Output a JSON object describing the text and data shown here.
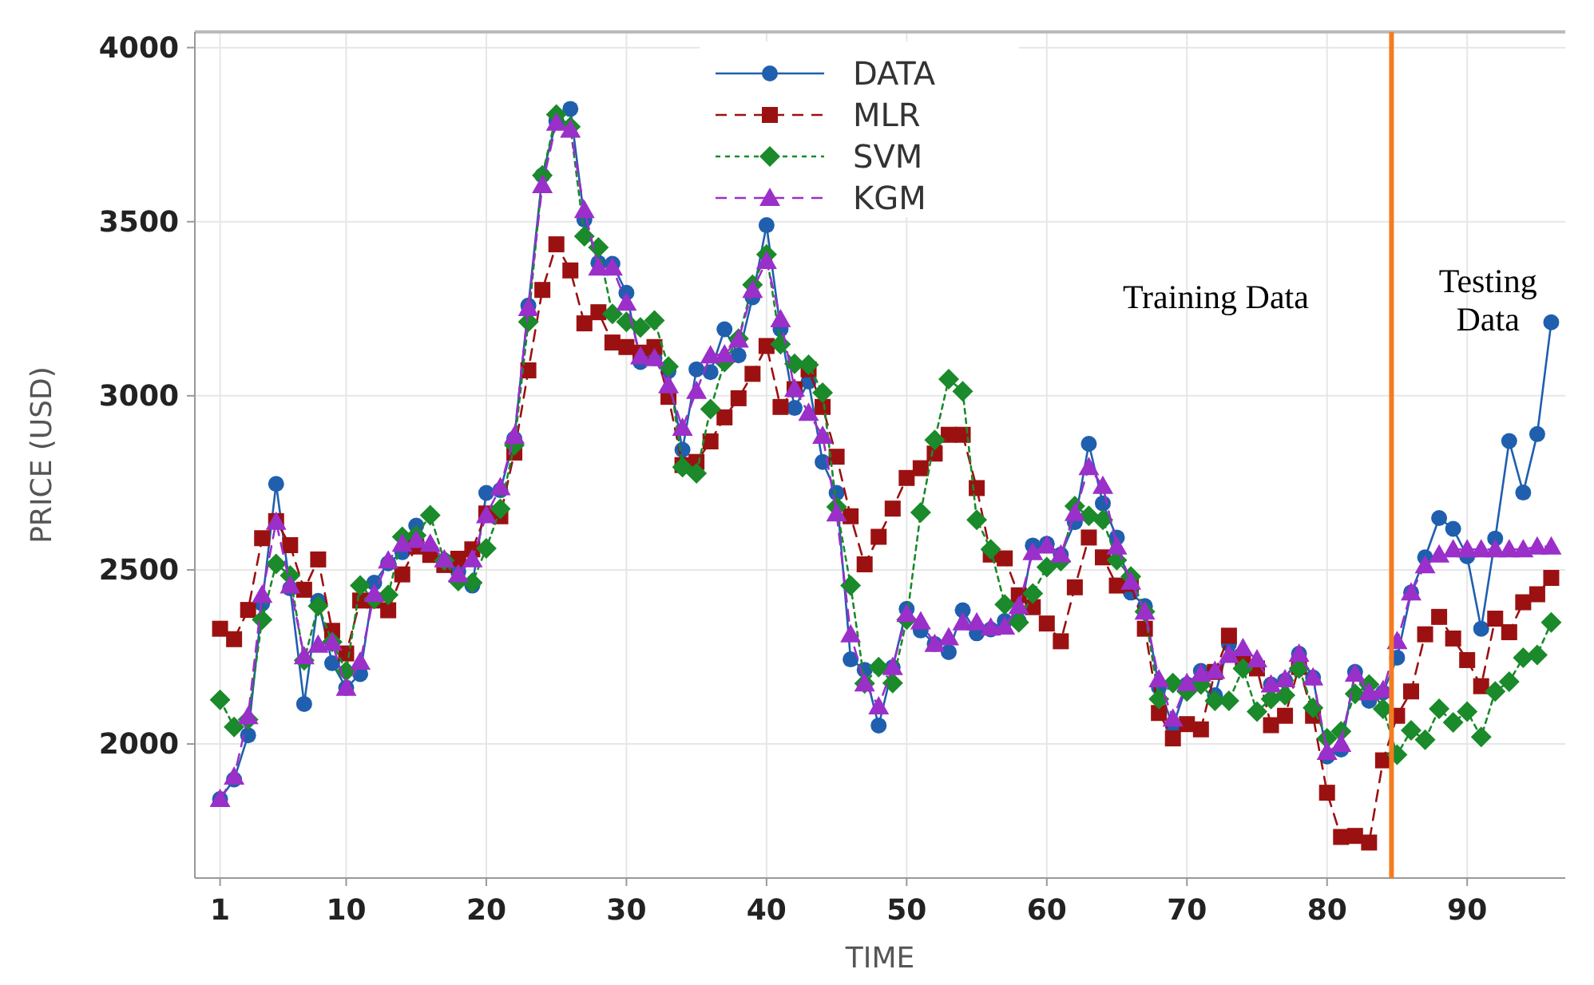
{
  "chart_data": {
    "type": "line",
    "xlabel": "TIME",
    "ylabel": "PRICE (USD)",
    "x": [
      1,
      2,
      3,
      4,
      5,
      6,
      7,
      8,
      9,
      10,
      11,
      12,
      13,
      14,
      15,
      16,
      17,
      18,
      19,
      20,
      21,
      22,
      23,
      24,
      25,
      26,
      27,
      28,
      29,
      30,
      31,
      32,
      33,
      34,
      35,
      36,
      37,
      38,
      39,
      40,
      41,
      42,
      43,
      44,
      45,
      46,
      47,
      48,
      49,
      50,
      51,
      52,
      53,
      54,
      55,
      56,
      57,
      58,
      59,
      60,
      61,
      62,
      63,
      64,
      65,
      66,
      67,
      68,
      69,
      70,
      71,
      72,
      73,
      74,
      75,
      76,
      77,
      78,
      79,
      80,
      81,
      82,
      83,
      84,
      85,
      86,
      87,
      88,
      89,
      90,
      91,
      92,
      93,
      94,
      95,
      96
    ],
    "xlim": [
      -0.8,
      97
    ],
    "xticks": [
      1,
      10,
      20,
      30,
      40,
      50,
      60,
      70,
      80,
      90
    ],
    "ylim": [
      1615,
      4045
    ],
    "yticks": [
      2000,
      2500,
      3000,
      3500,
      4000
    ],
    "grid": true,
    "legend": "top",
    "series": [
      {
        "name": "DATA",
        "color": "#1f5fae",
        "marker": "circle",
        "line_style": "solid",
        "values": [
          1842,
          1898,
          2025,
          2403,
          2747,
          2447,
          2115,
          2411,
          2232,
          2161,
          2201,
          2463,
          2519,
          2551,
          2627,
          null,
          2527,
          2495,
          2455,
          2721,
          2729,
          2877,
          3259,
          3633,
          3789,
          3824,
          3506,
          3382,
          3379,
          3296,
          3097,
          3108,
          3071,
          2845,
          3076,
          3068,
          3191,
          3116,
          3283,
          3490,
          3191,
          2965,
          3041,
          2810,
          2721,
          2243,
          2213,
          2053,
          2220,
          2388,
          2326,
          2287,
          2264,
          2384,
          2318,
          2329,
          2353,
          2353,
          2570,
          2575,
          2544,
          2637,
          2862,
          2691,
          2593,
          2435,
          2396,
          2163,
          2051,
          2171,
          2210,
          2140,
          2287,
          2233,
          null,
          2171,
          2182,
          2259,
          2191,
          1964,
          1984,
          2207,
          2124,
          2148,
          2248,
          2435,
          2536,
          2649,
          2618,
          2539,
          2331,
          2590,
          2870,
          2722,
          2890,
          3211
        ]
      },
      {
        "name": "MLR",
        "color": "#9b1111",
        "marker": "square",
        "line_style": "dashed",
        "values": [
          2331,
          2301,
          2385,
          2591,
          2640,
          2571,
          2443,
          2530,
          2325,
          2260,
          2412,
          2412,
          2384,
          2487,
          2567,
          2543,
          2514,
          2532,
          2559,
          2662,
          2654,
          2837,
          3073,
          3304,
          3435,
          3360,
          3208,
          3240,
          3153,
          3140,
          3124,
          3140,
          2997,
          2801,
          2810,
          2869,
          2938,
          2993,
          3063,
          3143,
          2968,
          3019,
          3076,
          2968,
          2825,
          2654,
          2516,
          2595,
          2676,
          2764,
          2792,
          2834,
          2888,
          2888,
          2735,
          2544,
          2533,
          2427,
          2393,
          2346,
          2295,
          2450,
          2593,
          2536,
          2455,
          2460,
          2331,
          2089,
          2016,
          2057,
          2042,
          2207,
          2311,
          2233,
          2217,
          2054,
          2081,
          2221,
          2081,
          1860,
          1733,
          1736,
          1717,
          1953,
          2081,
          2151,
          2315,
          2365,
          2303,
          2241,
          2166,
          2360,
          2321,
          2407,
          2430,
          2477
        ]
      },
      {
        "name": "SVM",
        "color": "#1a8a2a",
        "marker": "diamond",
        "line_style": "dotted",
        "values": [
          2127,
          2049,
          2070,
          2357,
          2517,
          2484,
          2240,
          2396,
          2293,
          2209,
          2455,
          2416,
          2428,
          2595,
          2599,
          2657,
          2527,
          2468,
          2463,
          2562,
          2675,
          2858,
          3212,
          3633,
          3808,
          3773,
          3458,
          3426,
          3235,
          3212,
          3196,
          3216,
          3084,
          2795,
          2777,
          2962,
          3097,
          3164,
          3319,
          3406,
          3148,
          3092,
          3089,
          3009,
          2681,
          2455,
          2174,
          2221,
          2175,
          2357,
          2665,
          2873,
          3048,
          3013,
          2644,
          2559,
          2401,
          2349,
          2432,
          2508,
          2525,
          2683,
          2655,
          2644,
          2528,
          2481,
          2380,
          2129,
          2175,
          2151,
          2171,
          2124,
          2124,
          2217,
          2093,
          2129,
          2140,
          2217,
          2104,
          2016,
          2036,
          2144,
          2171,
          2101,
          1969,
          2039,
          2012,
          2101,
          2062,
          2093,
          2020,
          2151,
          2179,
          2248,
          2256,
          2349
        ]
      },
      {
        "name": "KGM",
        "color": "#9b2fc9",
        "marker": "triangle",
        "line_style": "dashed",
        "values": [
          1842,
          1906,
          2080,
          2428,
          2638,
          2455,
          2252,
          2285,
          2291,
          2161,
          2236,
          2431,
          2527,
          2575,
          2586,
          2575,
          2530,
          2487,
          2530,
          2657,
          2737,
          2885,
          3252,
          3605,
          3784,
          3764,
          3533,
          3368,
          3368,
          3267,
          3113,
          3108,
          3030,
          2908,
          3014,
          3116,
          3119,
          3161,
          3304,
          3387,
          3220,
          3020,
          2951,
          2885,
          2662,
          2315,
          2174,
          2108,
          2221,
          2373,
          2352,
          2287,
          2306,
          2349,
          2349,
          2334,
          2337,
          2396,
          2551,
          2570,
          2544,
          2663,
          2795,
          2741,
          2567,
          2466,
          2380,
          2186,
          2073,
          2175,
          2202,
          2210,
          2256,
          2275,
          2243,
          2171,
          2186,
          2259,
          2191,
          1977,
          2000,
          2202,
          2148,
          2155,
          2295,
          2435,
          2513,
          2544,
          2559,
          2559,
          2559,
          2559,
          2559,
          2559,
          2567,
          2567
        ]
      }
    ],
    "ref_lines": [
      {
        "axis": "x",
        "value": 84.6,
        "color": "#f47c20",
        "line_style": "solid"
      }
    ],
    "annotations": [
      "Training Data",
      "Testing Data"
    ]
  }
}
